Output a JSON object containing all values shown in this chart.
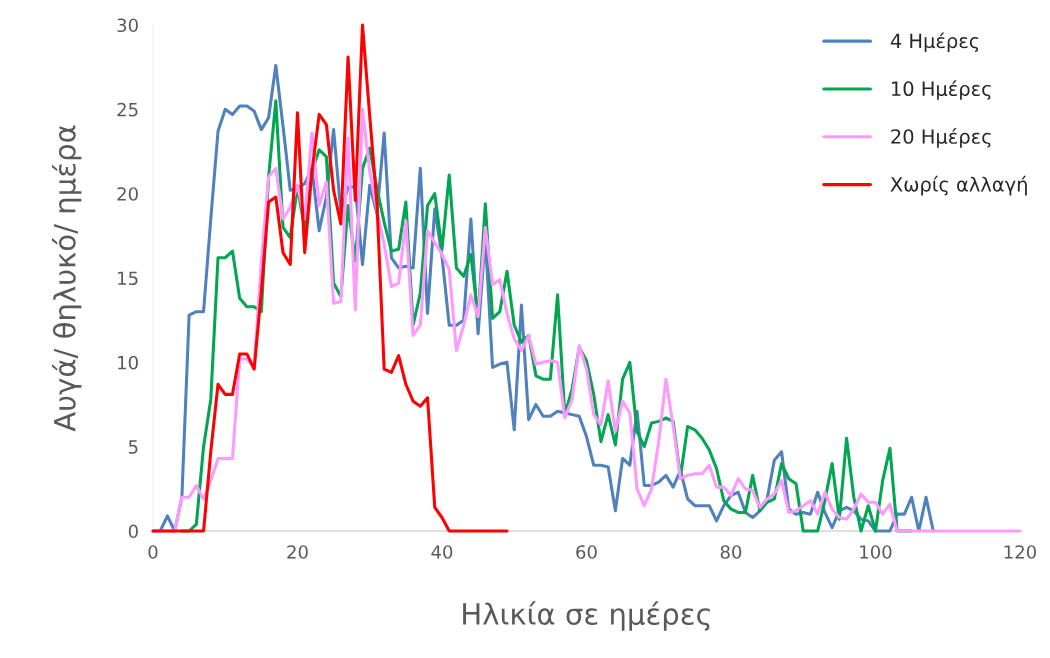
{
  "chart_data": {
    "type": "line",
    "xlabel": "Ηλικία σε ημέρες",
    "ylabel": "Αυγά/ θηλυκό/ ημέρα",
    "x": [
      0,
      1,
      2,
      3,
      4,
      5,
      6,
      7,
      8,
      9,
      10,
      11,
      12,
      13,
      14,
      15,
      16,
      17,
      18,
      19,
      20,
      21,
      22,
      23,
      24,
      25,
      26,
      27,
      28,
      29,
      30,
      31,
      32,
      33,
      34,
      35,
      36,
      37,
      38,
      39,
      40,
      41,
      42,
      43,
      44,
      45,
      46,
      47,
      48,
      49,
      50,
      51,
      52,
      53,
      54,
      55,
      56,
      57,
      58,
      59,
      60,
      61,
      62,
      63,
      64,
      65,
      66,
      67,
      68,
      69,
      70,
      71,
      72,
      73,
      74,
      75,
      76,
      77,
      78,
      79,
      80,
      81,
      82,
      83,
      84,
      85,
      86,
      87,
      88,
      89,
      90,
      91,
      92,
      93,
      94,
      95,
      96,
      97,
      98,
      99,
      100,
      101,
      102,
      103,
      104,
      105,
      106,
      107,
      108,
      109,
      110,
      111,
      112,
      113,
      114,
      115,
      116,
      117,
      118,
      119,
      120
    ],
    "series": [
      {
        "name": "4 Ημέρες",
        "color": "#4f81bd",
        "values": [
          0,
          0,
          0.9,
          0,
          2,
          12.8,
          13,
          13,
          18.5,
          23.7,
          25,
          24.7,
          25.2,
          25.2,
          24.9,
          23.8,
          24.5,
          27.6,
          24,
          20.2,
          20.3,
          20.6,
          21.5,
          17.8,
          19.8,
          23.8,
          18.9,
          20.4,
          20.4,
          15.8,
          20.5,
          18.8,
          23.6,
          16.2,
          15.6,
          15.7,
          15.6,
          21.5,
          12.9,
          19.1,
          16.3,
          12.2,
          12.2,
          12.5,
          18.5,
          11.7,
          17.4,
          9.7,
          9.9,
          10,
          6,
          13.4,
          6.6,
          7.5,
          6.8,
          6.8,
          7.1,
          7,
          6.9,
          6.8,
          5.6,
          3.9,
          3.9,
          3.8,
          1.2,
          4.3,
          3.9,
          7.1,
          2.7,
          2.7,
          2.9,
          3.3,
          2.6,
          3.6,
          1.9,
          1.5,
          1.5,
          1.5,
          0.6,
          1.5,
          2.1,
          2.3,
          1.1,
          0.8,
          1.2,
          1.9,
          4.2,
          4.7,
          1.3,
          1,
          1.1,
          1,
          2.3,
          1.1,
          0.2,
          1.2,
          1.4,
          1.2,
          0.7,
          0.6,
          0,
          0,
          0,
          1,
          1,
          2,
          0,
          2,
          0,
          null,
          null,
          null,
          null,
          null,
          null,
          null,
          null,
          null,
          null,
          null,
          null
        ]
      },
      {
        "name": "10 Ημέρες",
        "color": "#00a650",
        "values": [
          null,
          null,
          null,
          null,
          0,
          0,
          0.4,
          5,
          7.8,
          16.2,
          16.2,
          16.6,
          13.8,
          13.3,
          13.3,
          13,
          21,
          25.5,
          18,
          17.4,
          20.4,
          17.9,
          21.3,
          22.6,
          22.2,
          14.7,
          13.9,
          19.3,
          16,
          21.5,
          22.7,
          20.3,
          18.3,
          16.6,
          16.7,
          19.5,
          12.2,
          14.1,
          19.3,
          20,
          16.7,
          21.1,
          15.6,
          15.1,
          16.4,
          12.6,
          19.4,
          12.6,
          13,
          15.4,
          12.2,
          11.2,
          11.6,
          9.2,
          9,
          9,
          14,
          6.9,
          8.4,
          10.9,
          10.1,
          8.1,
          5.3,
          6.9,
          5.1,
          9,
          10,
          5.9,
          5,
          6.4,
          6.5,
          6.7,
          6.5,
          3.2,
          6.2,
          6,
          5.5,
          4.8,
          3.7,
          1.8,
          1.3,
          1.1,
          1.1,
          3.3,
          1.2,
          1.7,
          1.9,
          4,
          3.1,
          2.8,
          0,
          0,
          0,
          1.8,
          4,
          0.7,
          5.5,
          2,
          0,
          1.5,
          0,
          3,
          4.9,
          0,
          0,
          0,
          null,
          null,
          null,
          null,
          null,
          null,
          null,
          null,
          null,
          null,
          null,
          null,
          null,
          null,
          null
        ]
      },
      {
        "name": "20 Ημέρες",
        "color": "#ff99ff",
        "values": [
          0,
          0,
          0,
          0,
          2,
          2,
          2.7,
          1.9,
          3,
          4.3,
          4.3,
          4.3,
          10.2,
          10.2,
          9.7,
          16,
          21,
          21.5,
          18.5,
          19.2,
          20.5,
          18.5,
          23.6,
          19.3,
          20.7,
          13.5,
          13.6,
          23.3,
          13.1,
          25,
          21.3,
          19,
          17,
          14.5,
          14.7,
          18.4,
          11.6,
          12.2,
          17.8,
          17.1,
          16.4,
          15.5,
          10.7,
          12.2,
          14,
          12.7,
          18,
          14.6,
          14.9,
          12.9,
          11.4,
          10.7,
          11.6,
          9.9,
          10,
          10.1,
          10,
          6.7,
          7.8,
          11,
          9.6,
          6.9,
          6.3,
          8.9,
          5.9,
          7.7,
          7,
          2.5,
          1.5,
          2.5,
          5.3,
          9,
          6.2,
          3.1,
          3.3,
          3.4,
          3.4,
          3.9,
          2.6,
          2.6,
          2.1,
          3.1,
          2.5,
          2.4,
          1.4,
          1.9,
          2.2,
          3,
          1.1,
          1.2,
          1.5,
          1.8,
          1,
          2.3,
          1.3,
          0.8,
          0.7,
          1.3,
          2.2,
          1.7,
          1.7,
          1,
          1.6,
          0,
          0,
          0,
          0,
          0,
          0,
          0,
          0,
          0,
          0,
          0,
          0,
          0,
          0,
          0,
          0,
          0,
          0
        ]
      },
      {
        "name": "Χωρίς αλλαγή",
        "color": "#ff0000",
        "values": [
          0,
          0,
          0,
          0,
          0,
          0,
          0,
          0,
          4.7,
          8.7,
          8.1,
          8.1,
          10.5,
          10.5,
          9.6,
          14.2,
          19.5,
          19.8,
          16.5,
          15.8,
          24.8,
          16.5,
          21.3,
          24.7,
          24.1,
          20.2,
          18.2,
          28.1,
          19.6,
          30,
          24.6,
          19.4,
          9.6,
          9.4,
          10.4,
          8.7,
          7.7,
          7.4,
          7.9,
          1.4,
          0.8,
          0,
          0,
          0,
          0,
          0,
          0,
          0,
          0,
          0,
          null,
          null,
          null,
          null,
          null,
          null,
          null,
          null,
          null,
          null,
          null,
          null,
          null,
          null,
          null,
          null,
          null,
          null,
          null,
          null,
          null,
          null,
          null,
          null,
          null,
          null,
          null,
          null,
          null,
          null,
          null,
          null,
          null,
          null,
          null,
          null,
          null,
          null,
          null,
          null,
          null,
          null,
          null,
          null,
          null,
          null,
          null,
          null,
          null,
          null,
          null,
          null,
          null,
          null,
          null,
          null,
          null,
          null,
          null,
          null,
          null,
          null,
          null,
          null,
          null,
          null,
          null,
          null,
          null,
          null,
          null
        ]
      }
    ],
    "xlim": [
      0,
      120
    ],
    "xticks": [
      0,
      20,
      40,
      60,
      80,
      100,
      120
    ],
    "ylim": [
      0,
      30
    ],
    "yticks": [
      0,
      5,
      10,
      15,
      20,
      25,
      30
    ],
    "grid": false,
    "legend": "top right",
    "marker": "none",
    "line_style": "solid"
  }
}
